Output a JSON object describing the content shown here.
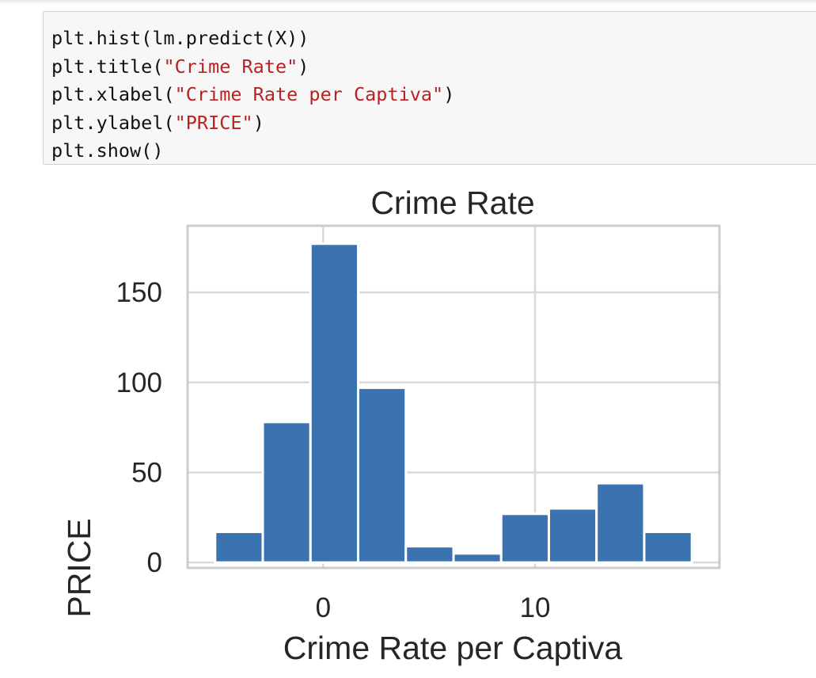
{
  "code_cell": {
    "lines": [
      [
        {
          "t": "plt.hist(lm.predict(X))",
          "s": false
        }
      ],
      [
        {
          "t": "plt.title(",
          "s": false
        },
        {
          "t": "\"Crime Rate\"",
          "s": true
        },
        {
          "t": ")",
          "s": false
        }
      ],
      [
        {
          "t": "plt.xlabel(",
          "s": false
        },
        {
          "t": "\"Crime Rate per Captiva\"",
          "s": true
        },
        {
          "t": ")",
          "s": false
        }
      ],
      [
        {
          "t": "plt.ylabel(",
          "s": false
        },
        {
          "t": "\"PRICE\"",
          "s": true
        },
        {
          "t": ")",
          "s": false
        }
      ],
      [
        {
          "t": "plt.show()",
          "s": false
        }
      ]
    ]
  },
  "colors": {
    "bar": "#3b73b0",
    "grid": "#d9d9d9",
    "frame": "#cccccc",
    "code_string": "#ba2121"
  },
  "chart_data": {
    "type": "bar",
    "title": "Crime Rate",
    "xlabel": "Crime Rate per Captiva",
    "ylabel": "PRICE",
    "bin_edges": [
      -5.1,
      -2.85,
      -0.6,
      1.65,
      3.9,
      6.15,
      8.4,
      10.65,
      12.9,
      15.15,
      17.4
    ],
    "values": [
      17,
      78,
      177,
      97,
      9,
      5,
      27,
      30,
      44,
      17
    ],
    "xlim": [
      -6.4,
      18.7
    ],
    "ylim": [
      -3,
      187
    ],
    "xticks": [
      0,
      10
    ],
    "xtick_labels": [
      "0",
      "10"
    ],
    "yticks": [
      0,
      50,
      100,
      150
    ],
    "ytick_labels": [
      "0",
      "50",
      "100",
      "150"
    ],
    "grid": true
  }
}
